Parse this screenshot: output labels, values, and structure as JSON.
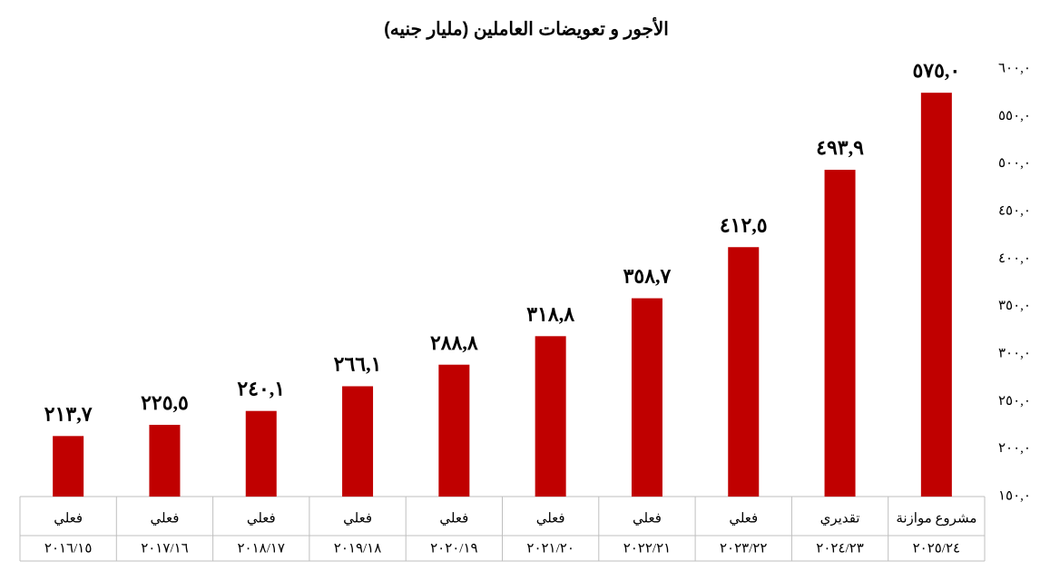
{
  "chart_data": {
    "type": "bar",
    "title": "الأجور و تعويضات العاملين (مليار جنيه)",
    "categories": [
      "٢٠١٦/١٥",
      "٢٠١٧/١٦",
      "٢٠١٨/١٧",
      "٢٠١٩/١٨",
      "٢٠٢٠/١٩",
      "٢٠٢١/٢٠",
      "٢٠٢٢/٢١",
      "٢٠٢٣/٢٢",
      "٢٠٢٤/٢٣",
      "٢٠٢٥/٢٤"
    ],
    "category_status": [
      "فعلي",
      "فعلي",
      "فعلي",
      "فعلي",
      "فعلي",
      "فعلي",
      "فعلي",
      "فعلي",
      "تقديري",
      "مشروع موازنة"
    ],
    "values": [
      213.7,
      225.5,
      240.1,
      266.1,
      288.8,
      318.8,
      358.7,
      412.5,
      493.9,
      575.0
    ],
    "value_labels": [
      "٢١٣,٧",
      "٢٢٥,٥",
      "٢٤٠,١",
      "٢٦٦,١",
      "٢٨٨,٨",
      "٣١٨,٨",
      "٣٥٨,٧",
      "٤١٢,٥",
      "٤٩٣,٩",
      "٥٧٥,٠"
    ],
    "color": "#c00000",
    "ylim": [
      150,
      600
    ],
    "yticks": [
      {
        "value": 150,
        "label": "١٥٠,٠"
      },
      {
        "value": 200,
        "label": "٢٠٠,٠"
      },
      {
        "value": 250,
        "label": "٢٥٠,٠"
      },
      {
        "value": 300,
        "label": "٣٠٠,٠"
      },
      {
        "value": 350,
        "label": "٣٥٠,٠"
      },
      {
        "value": 400,
        "label": "٤٠٠,٠"
      },
      {
        "value": 450,
        "label": "٤٥٠,٠"
      },
      {
        "value": 500,
        "label": "٥٠٠,٠"
      },
      {
        "value": 550,
        "label": "٥٥٠,٠"
      },
      {
        "value": 600,
        "label": "٦٠٠,٠"
      }
    ],
    "grid": false
  }
}
